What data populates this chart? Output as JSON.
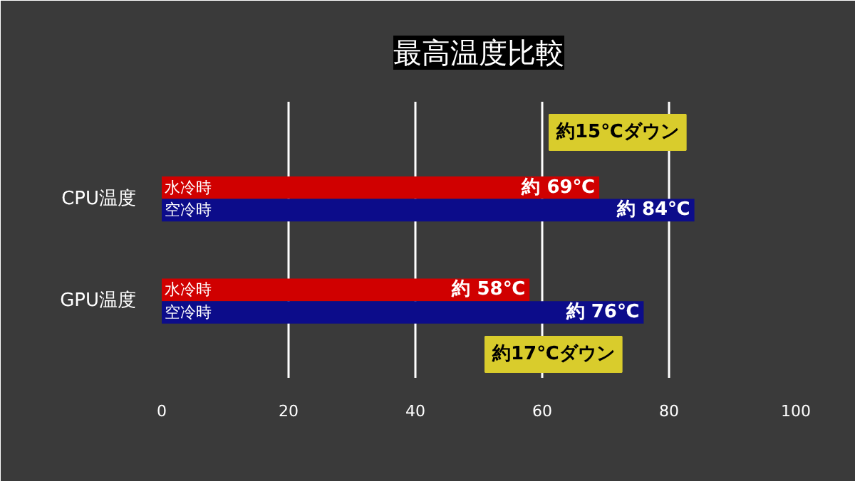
{
  "chart_data": {
    "type": "bar",
    "orientation": "horizontal",
    "title": "最高温度比較",
    "categories": [
      "CPU温度",
      "GPU温度"
    ],
    "series": [
      {
        "name": "水冷時",
        "color": "#d00000",
        "values": [
          69,
          58
        ],
        "value_labels": [
          "約 69℃",
          "約 58℃"
        ]
      },
      {
        "name": "空冷時",
        "color": "#0c0c8a",
        "values": [
          84,
          76
        ],
        "value_labels": [
          "約 84℃",
          "約 76℃"
        ]
      }
    ],
    "xlim": [
      0,
      100
    ],
    "xticks": [
      0,
      20,
      40,
      60,
      80,
      100
    ],
    "grid": "x",
    "annotations": [
      "約15℃ダウン",
      "約17℃ダウン"
    ]
  }
}
